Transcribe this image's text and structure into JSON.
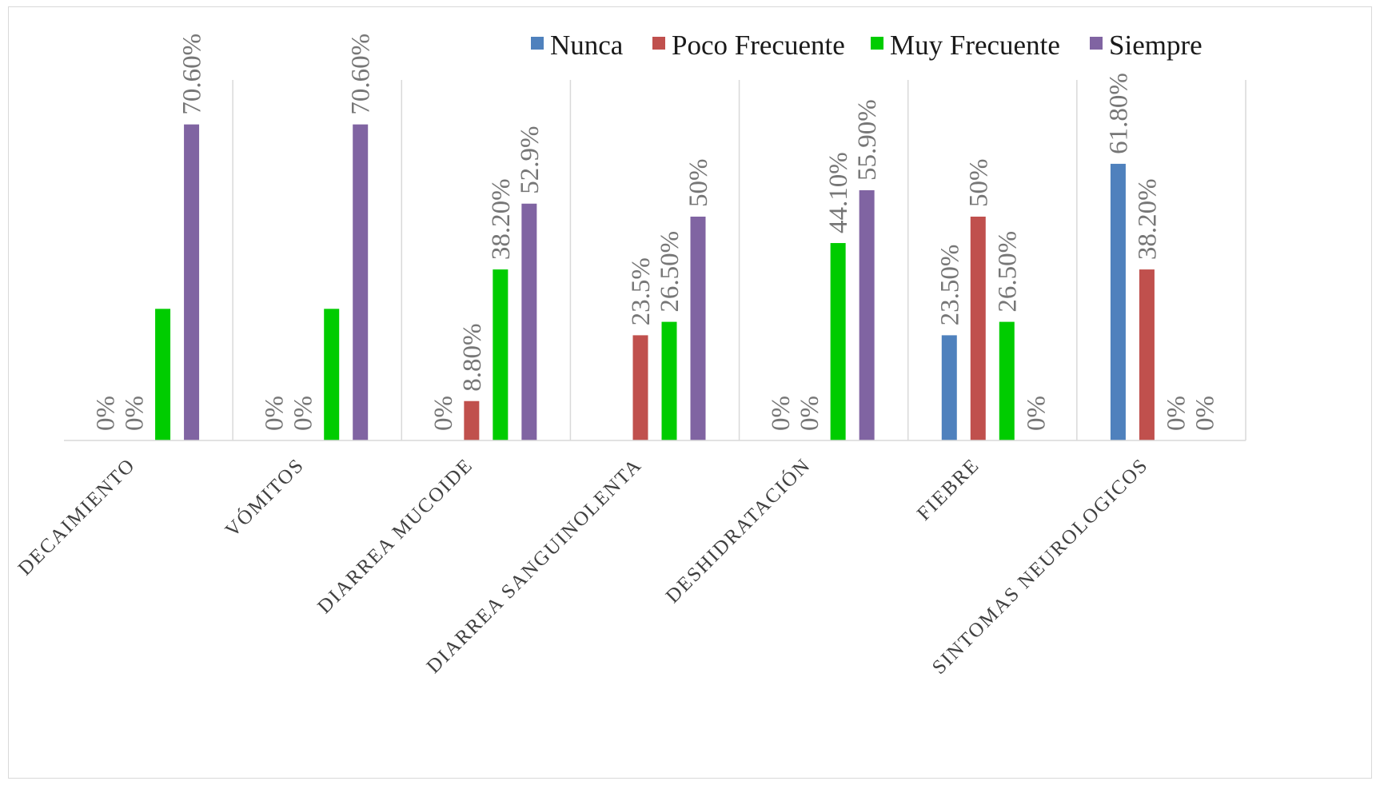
{
  "chart_data": {
    "type": "bar",
    "title": "",
    "xlabel": "",
    "ylabel": "",
    "ylim": [
      0,
      80
    ],
    "legend_position": "top-right",
    "grid": "vertical category separators",
    "categories": [
      "DECAIMIENTO",
      "VÓMITOS",
      "DIARREA MUCOIDE",
      "DIARREA SANGUINOLENTA",
      "DESHIDRATACIÓN",
      "FIEBRE",
      "SINTOMAS NEUROLOGICOS"
    ],
    "series": [
      {
        "name": "Nunca",
        "color": "#4f81bd",
        "values": [
          0,
          0,
          0,
          0,
          0,
          23.5,
          61.8
        ],
        "labels": [
          "0%",
          "0%",
          "0%",
          "0%",
          "0%",
          "23.50%",
          "61.80%"
        ]
      },
      {
        "name": "Poco Frecuente",
        "color": "#c0504d",
        "values": [
          0,
          0,
          8.8,
          23.5,
          0,
          50,
          38.2
        ],
        "labels": [
          "0%",
          "0%",
          "8.80%",
          "23.5%",
          "0%",
          "50%",
          "38.20%"
        ]
      },
      {
        "name": "Muy Frecuente",
        "color": "#00cc00",
        "values": [
          29.4,
          29.4,
          38.2,
          26.5,
          44.1,
          26.5,
          0
        ],
        "labels": [
          "29.40%",
          "29.40%",
          "38.20%",
          "26.50%",
          "44.10%",
          "26.50%",
          "0%"
        ]
      },
      {
        "name": "Siempre",
        "color": "#8064a2",
        "values": [
          70.6,
          70.6,
          52.9,
          50,
          55.9,
          0,
          0
        ],
        "labels": [
          "70.60%",
          "70.60%",
          "52.9%",
          "50%",
          "55.90%",
          "0%",
          "0%"
        ]
      }
    ],
    "hidden_labels": [
      {
        "series": 0,
        "category": 3
      },
      {
        "series": 2,
        "category": 0
      },
      {
        "series": 2,
        "category": 1
      }
    ]
  }
}
